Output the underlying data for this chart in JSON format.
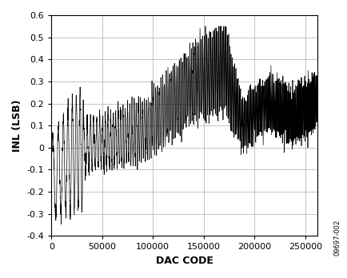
{
  "title": "",
  "xlabel": "DAC CODE",
  "ylabel": "INL (LSB)",
  "xlim": [
    0,
    262144
  ],
  "ylim": [
    -0.4,
    0.6
  ],
  "yticks": [
    -0.4,
    -0.3,
    -0.2,
    -0.1,
    0.0,
    0.1,
    0.2,
    0.3,
    0.4,
    0.5,
    0.6
  ],
  "xticks": [
    0,
    50000,
    100000,
    150000,
    200000,
    250000
  ],
  "xtick_labels": [
    "0",
    "50000",
    "100000",
    "150000",
    "200000",
    "250000"
  ],
  "line_color": "#000000",
  "background_color": "#ffffff",
  "grid_color": "#aaaaaa",
  "watermark": "09697-002",
  "n_points": 2000,
  "seed": 42
}
